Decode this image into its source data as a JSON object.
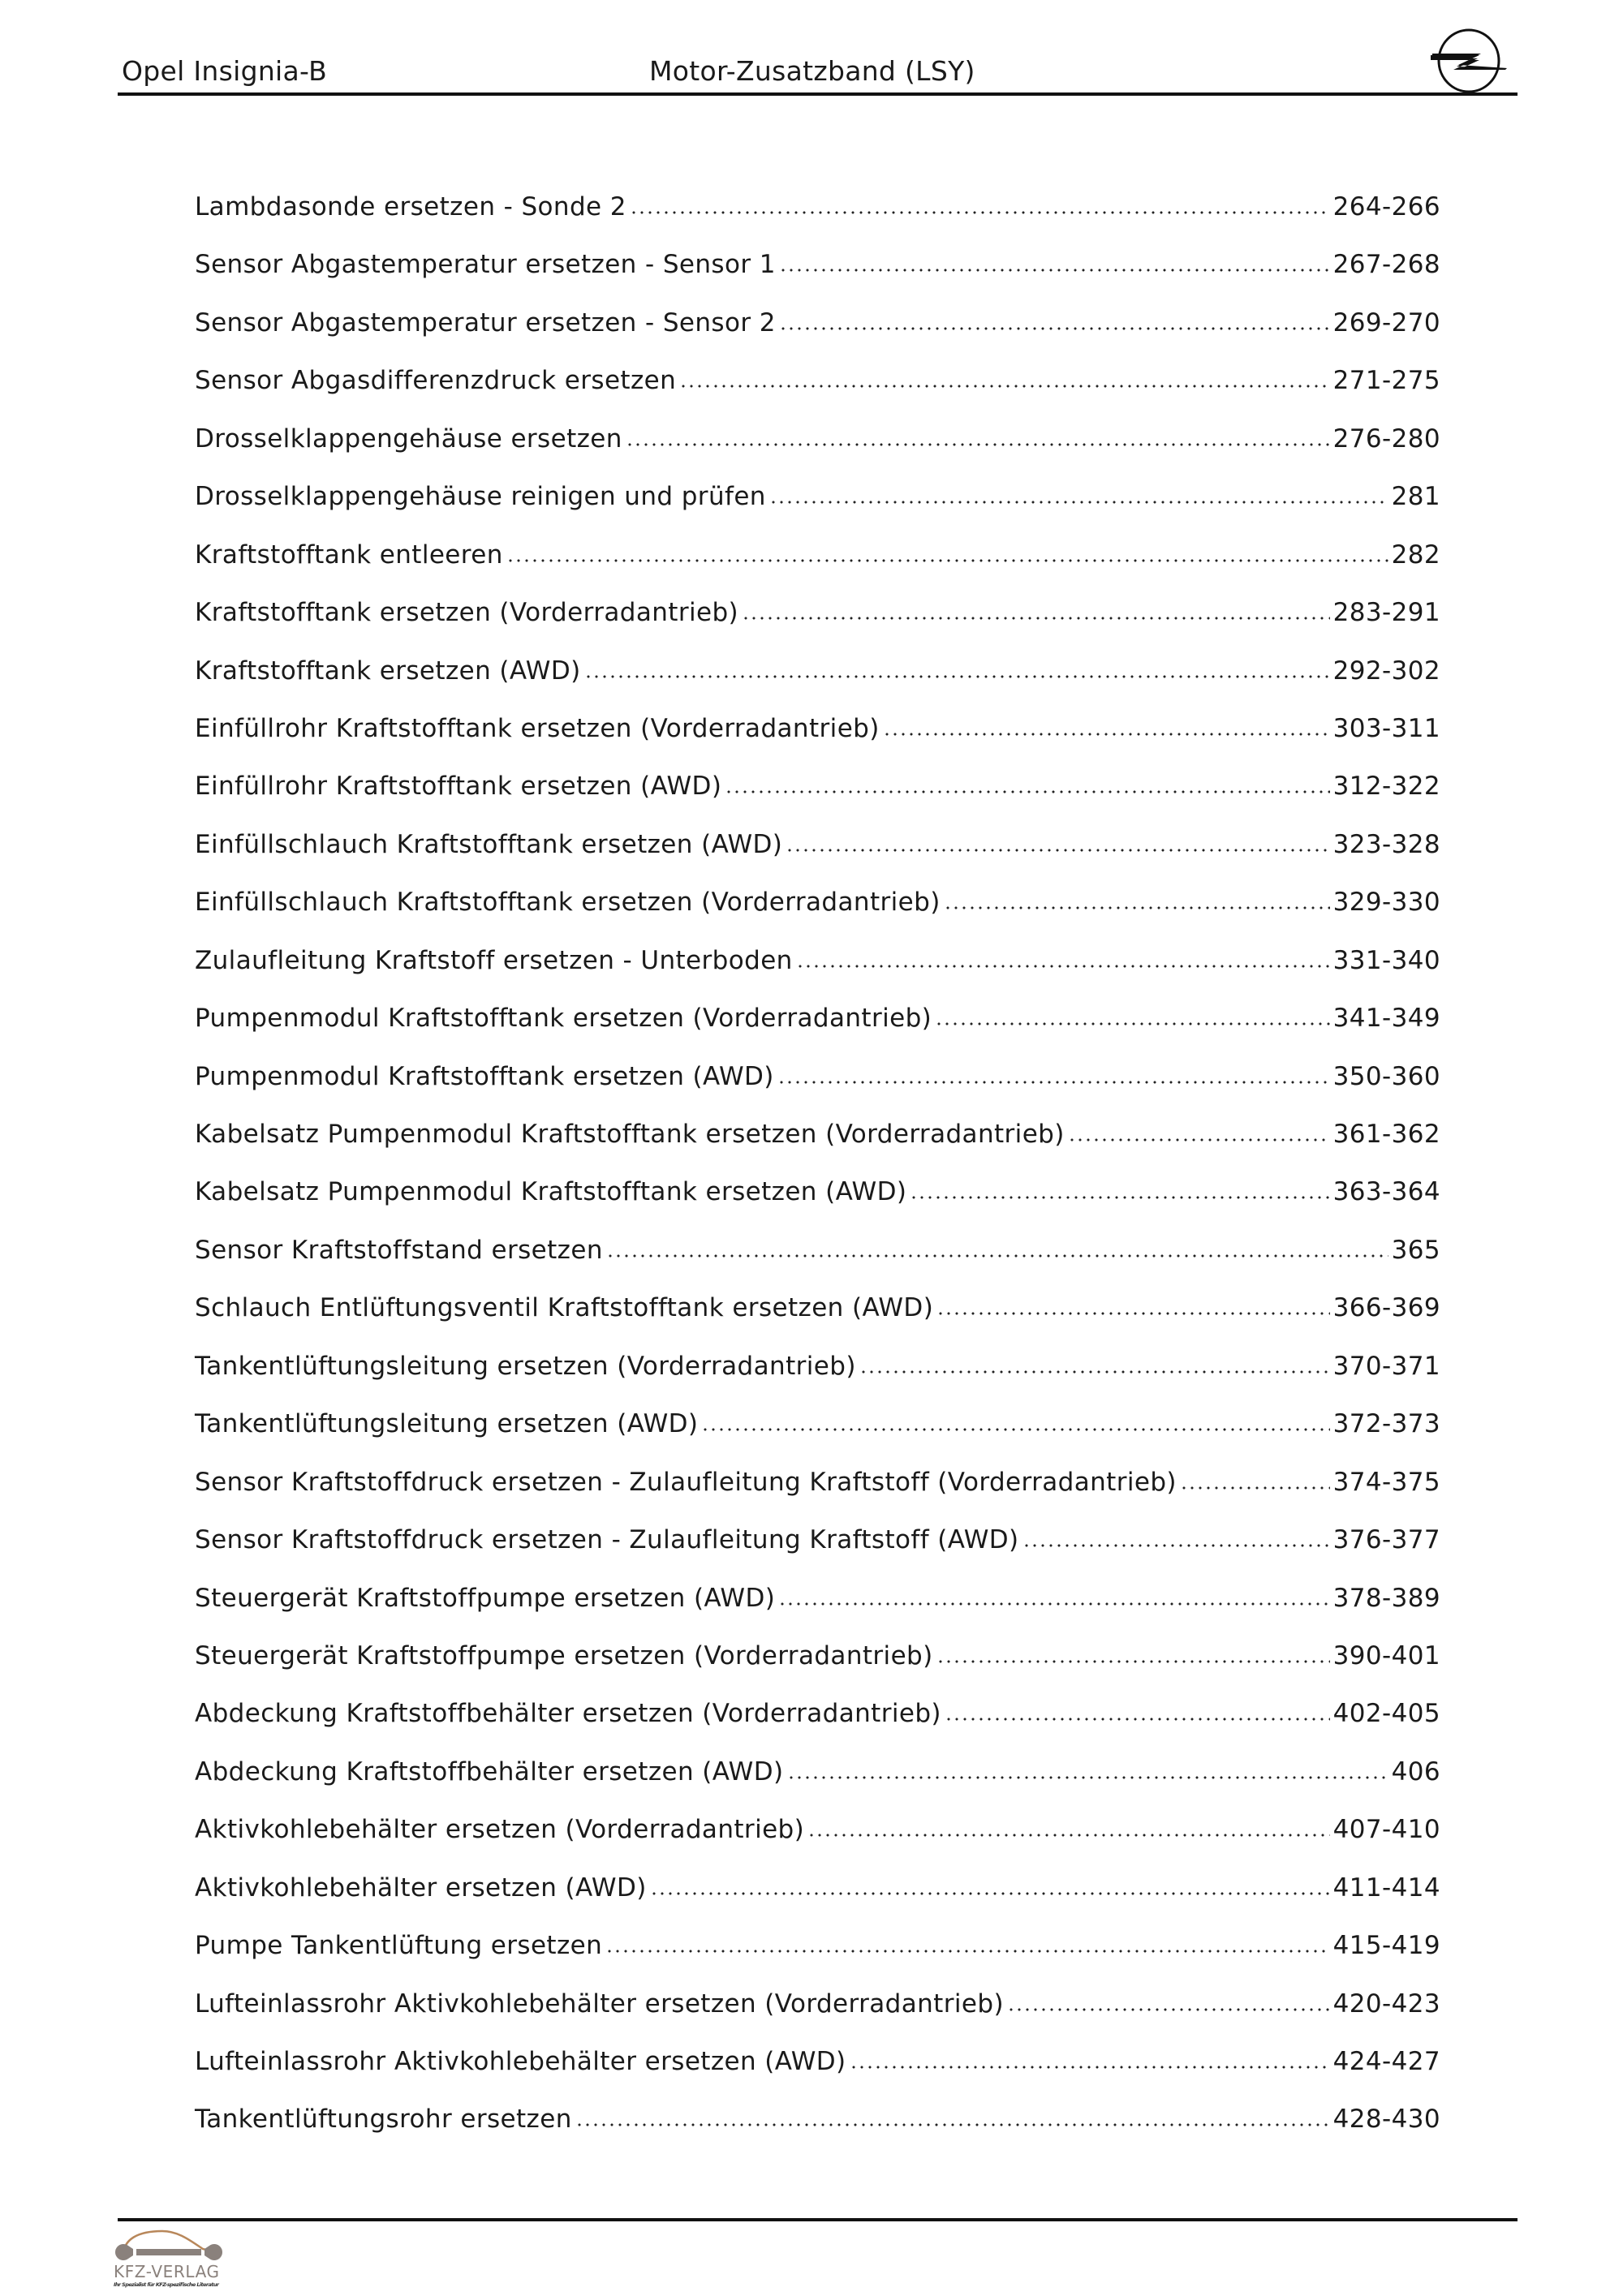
{
  "header": {
    "left": "Opel Insignia-B",
    "center": "Motor-Zusatzband (LSY)",
    "logo": "opel-logo"
  },
  "toc": [
    {
      "title": "Lambdasonde ersetzen - Sonde 2",
      "pages": "264-266"
    },
    {
      "title": "Sensor Abgastemperatur ersetzen - Sensor 1",
      "pages": "267-268"
    },
    {
      "title": "Sensor Abgastemperatur ersetzen - Sensor 2",
      "pages": "269-270"
    },
    {
      "title": "Sensor Abgasdifferenzdruck ersetzen",
      "pages": "271-275"
    },
    {
      "title": "Drosselklappengehäuse ersetzen",
      "pages": "276-280"
    },
    {
      "title": "Drosselklappengehäuse reinigen und prüfen",
      "pages": "281"
    },
    {
      "title": "Kraftstofftank entleeren",
      "pages": "282"
    },
    {
      "title": "Kraftstofftank ersetzen (Vorderradantrieb)",
      "pages": "283-291"
    },
    {
      "title": "Kraftstofftank ersetzen (AWD)",
      "pages": "292-302"
    },
    {
      "title": "Einfüllrohr Kraftstofftank ersetzen (Vorderradantrieb)",
      "pages": "303-311"
    },
    {
      "title": "Einfüllrohr Kraftstofftank ersetzen (AWD)",
      "pages": "312-322"
    },
    {
      "title": "Einfüllschlauch Kraftstofftank ersetzen (AWD)",
      "pages": "323-328"
    },
    {
      "title": "Einfüllschlauch Kraftstofftank ersetzen (Vorderradantrieb)",
      "pages": "329-330"
    },
    {
      "title": "Zulaufleitung Kraftstoff ersetzen - Unterboden",
      "pages": "331-340"
    },
    {
      "title": "Pumpenmodul Kraftstofftank ersetzen (Vorderradantrieb)",
      "pages": "341-349"
    },
    {
      "title": "Pumpenmodul Kraftstofftank ersetzen (AWD)",
      "pages": "350-360"
    },
    {
      "title": "Kabelsatz Pumpenmodul Kraftstofftank ersetzen (Vorderradantrieb)",
      "pages": "361-362"
    },
    {
      "title": "Kabelsatz Pumpenmodul Kraftstofftank ersetzen (AWD)",
      "pages": "363-364"
    },
    {
      "title": "Sensor Kraftstoffstand ersetzen",
      "pages": "365"
    },
    {
      "title": "Schlauch Entlüftungsventil Kraftstofftank ersetzen (AWD)",
      "pages": "366-369"
    },
    {
      "title": "Tankentlüftungsleitung ersetzen (Vorderradantrieb)",
      "pages": "370-371"
    },
    {
      "title": "Tankentlüftungsleitung ersetzen (AWD)",
      "pages": "372-373"
    },
    {
      "title": "Sensor Kraftstoffdruck ersetzen - Zulaufleitung Kraftstoff (Vorderradantrieb)",
      "pages": "374-375"
    },
    {
      "title": "Sensor Kraftstoffdruck ersetzen - Zulaufleitung Kraftstoff (AWD)",
      "pages": "376-377"
    },
    {
      "title": "Steuergerät Kraftstoffpumpe ersetzen (AWD)",
      "pages": "378-389"
    },
    {
      "title": "Steuergerät Kraftstoffpumpe ersetzen (Vorderradantrieb)",
      "pages": "390-401"
    },
    {
      "title": "Abdeckung Kraftstoffbehälter ersetzen (Vorderradantrieb)",
      "pages": "402-405"
    },
    {
      "title": "Abdeckung Kraftstoffbehälter ersetzen (AWD)",
      "pages": "406"
    },
    {
      "title": "Aktivkohlebehälter ersetzen (Vorderradantrieb)",
      "pages": "407-410"
    },
    {
      "title": "Aktivkohlebehälter ersetzen (AWD)",
      "pages": "411-414"
    },
    {
      "title": "Pumpe Tankentlüftung ersetzen",
      "pages": "415-419"
    },
    {
      "title": "Lufteinlassrohr Aktivkohlebehälter ersetzen (Vorderradantrieb)",
      "pages": "420-423"
    },
    {
      "title": "Lufteinlassrohr Aktivkohlebehälter ersetzen (AWD)",
      "pages": "424-427"
    },
    {
      "title": "Tankentlüftungsrohr ersetzen",
      "pages": "428-430"
    }
  ],
  "footer": {
    "logo_text": "KFZ-VERLAG",
    "logo_tagline": "Ihr Spezialist für KFZ-spezifische Literatur",
    "colors": {
      "car_outline": "#b8875a",
      "wrench": "#8a817c"
    }
  }
}
